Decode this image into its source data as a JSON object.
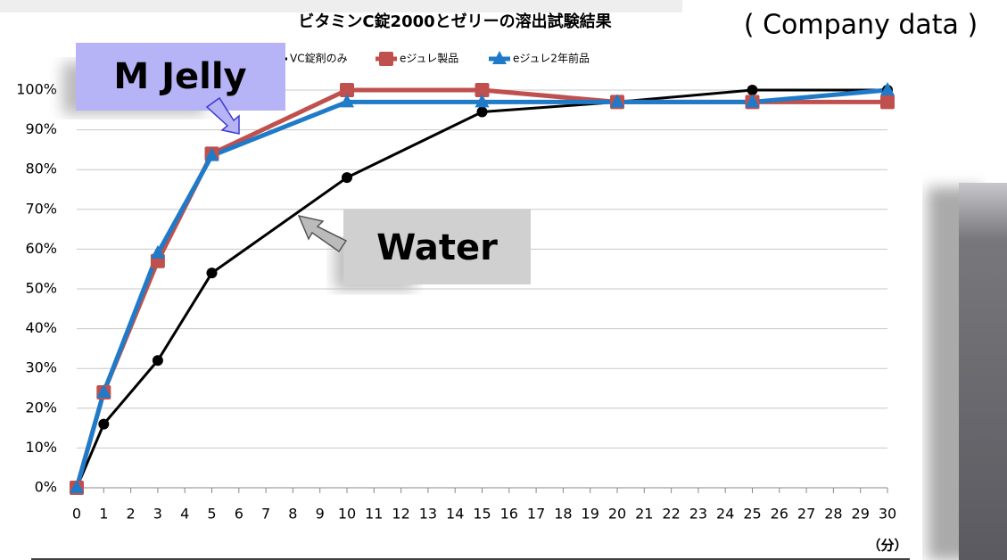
{
  "chart_data": {
    "type": "line",
    "title": "ビタミンC錠2000とゼリーの溶出試験結果",
    "source": "( Company data )",
    "x_label": "（分）",
    "annotations": [
      "M Jelly",
      "Water"
    ],
    "x": [
      0,
      1,
      3,
      5,
      10,
      15,
      20,
      25,
      30
    ],
    "series": [
      {
        "name": "VC錠剤のみ",
        "color": "#000000",
        "marker": "circle",
        "values": [
          0,
          16,
          32,
          54,
          78,
          94.5,
          97,
          100,
          100
        ]
      },
      {
        "name": "eジュレ製品",
        "color": "#c0504d",
        "marker": "square",
        "values": [
          0,
          24,
          57,
          84,
          100,
          100,
          97,
          97,
          97
        ]
      },
      {
        "name": "eジュレ2年前品",
        "color": "#1f7bc8",
        "marker": "triangle",
        "values": [
          0,
          24,
          59,
          83.5,
          97,
          97,
          97,
          97,
          100
        ]
      }
    ],
    "xlim": [
      0,
      30
    ],
    "xticks": [
      0,
      1,
      2,
      3,
      4,
      5,
      6,
      7,
      8,
      9,
      10,
      11,
      12,
      13,
      14,
      15,
      16,
      17,
      18,
      19,
      20,
      21,
      22,
      23,
      24,
      25,
      26,
      27,
      28,
      29,
      30
    ],
    "ylim": [
      0,
      100
    ],
    "yticks": [
      {
        "value": 0,
        "label": "0%"
      },
      {
        "value": 10,
        "label": "10%"
      },
      {
        "value": 20,
        "label": "20%"
      },
      {
        "value": 30,
        "label": "30%"
      },
      {
        "value": 40,
        "label": "40%"
      },
      {
        "value": 50,
        "label": "50%"
      },
      {
        "value": 60,
        "label": "60%"
      },
      {
        "value": 70,
        "label": "70%"
      },
      {
        "value": 80,
        "label": "80%"
      },
      {
        "value": 90,
        "label": "90%"
      },
      {
        "value": 100,
        "label": "100%"
      }
    ],
    "grid": true,
    "legend": "top"
  }
}
